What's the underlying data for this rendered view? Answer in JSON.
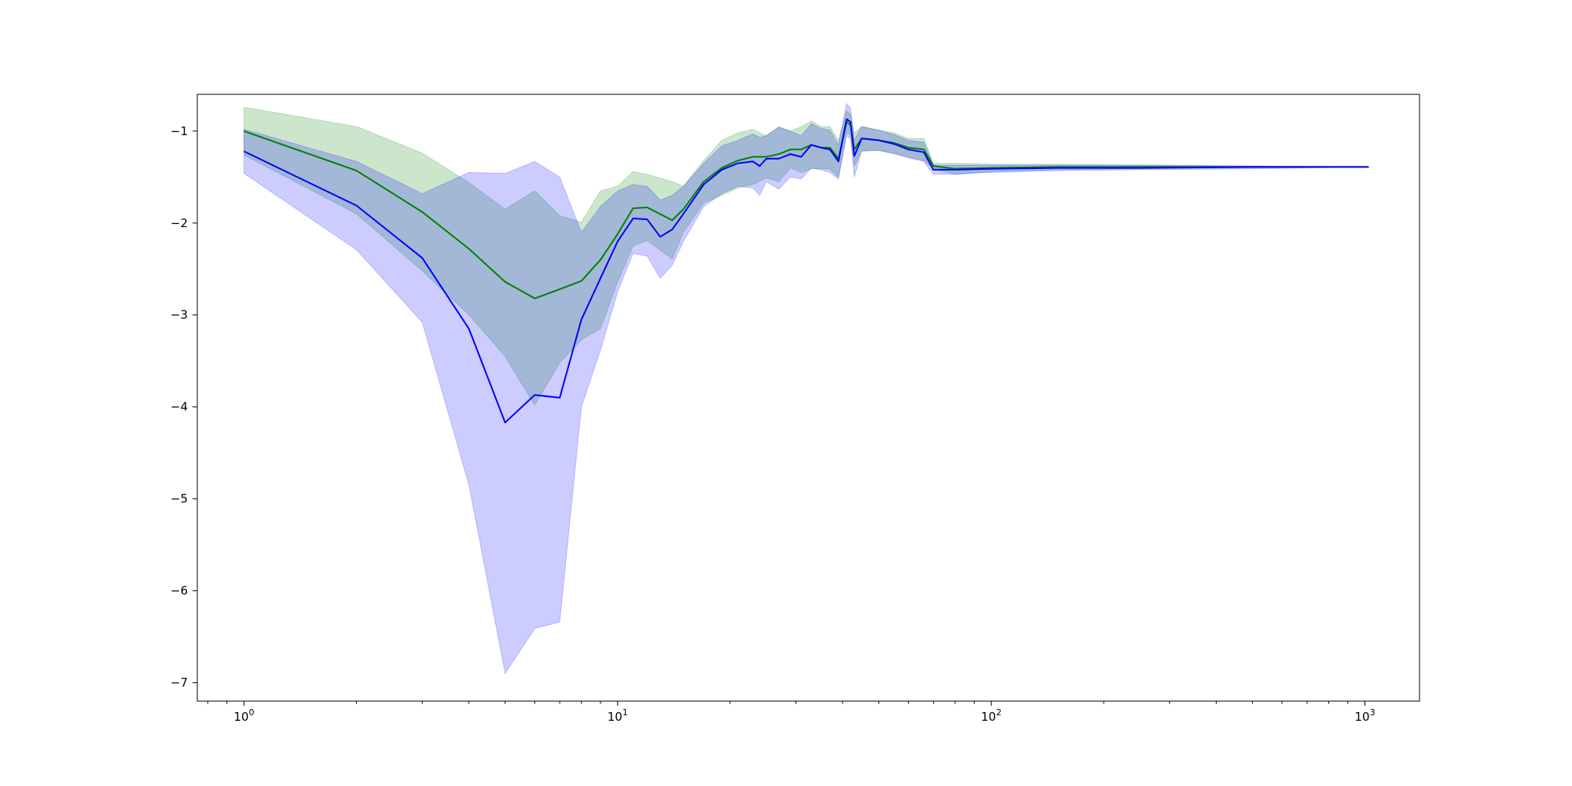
{
  "chart_data": {
    "type": "line",
    "title": "",
    "xlabel": "",
    "ylabel": "",
    "xscale": "log",
    "xlim": [
      0.75,
      1400
    ],
    "ylim": [
      -7.2,
      -0.6
    ],
    "grid": false,
    "x_ticks": [
      {
        "value": 1,
        "base": "10",
        "exp": "0"
      },
      {
        "value": 10,
        "base": "10",
        "exp": "1"
      },
      {
        "value": 100,
        "base": "10",
        "exp": "2"
      },
      {
        "value": 1000,
        "base": "10",
        "exp": "3"
      }
    ],
    "y_ticks": [
      {
        "value": -1,
        "label": "−1"
      },
      {
        "value": -2,
        "label": "−2"
      },
      {
        "value": -3,
        "label": "−3"
      },
      {
        "value": -4,
        "label": "−4"
      },
      {
        "value": -5,
        "label": "−5"
      },
      {
        "value": -6,
        "label": "−6"
      },
      {
        "value": -7,
        "label": "−7"
      }
    ],
    "series": [
      {
        "color": "#008000",
        "band_color": "#008000",
        "band_opacity": 0.2,
        "points": [
          [
            1,
            -1.0
          ],
          [
            2,
            -1.43
          ],
          [
            3,
            -1.88
          ],
          [
            4,
            -2.28
          ],
          [
            5,
            -2.64
          ],
          [
            6,
            -2.82
          ],
          [
            7,
            -2.72
          ],
          [
            8,
            -2.63
          ],
          [
            9,
            -2.4
          ],
          [
            10,
            -2.12
          ],
          [
            11,
            -1.84
          ],
          [
            12,
            -1.83
          ],
          [
            14,
            -1.97
          ],
          [
            15,
            -1.85
          ],
          [
            17,
            -1.55
          ],
          [
            19,
            -1.4
          ],
          [
            21,
            -1.32
          ],
          [
            23,
            -1.28
          ],
          [
            25,
            -1.28
          ],
          [
            27,
            -1.25
          ],
          [
            29,
            -1.2
          ],
          [
            31,
            -1.2
          ],
          [
            33,
            -1.15
          ],
          [
            35,
            -1.18
          ],
          [
            37,
            -1.18
          ],
          [
            39,
            -1.3
          ],
          [
            41,
            -0.9
          ],
          [
            42,
            -0.93
          ],
          [
            43,
            -1.2
          ],
          [
            45,
            -1.08
          ],
          [
            50,
            -1.1
          ],
          [
            55,
            -1.13
          ],
          [
            60,
            -1.18
          ],
          [
            66,
            -1.2
          ],
          [
            70,
            -1.38
          ],
          [
            80,
            -1.41
          ],
          [
            100,
            -1.4
          ],
          [
            150,
            -1.39
          ],
          [
            250,
            -1.39
          ],
          [
            500,
            -1.39
          ],
          [
            1024,
            -1.39
          ]
        ],
        "upper": [
          [
            1,
            -0.74
          ],
          [
            2,
            -0.95
          ],
          [
            3,
            -1.24
          ],
          [
            4,
            -1.56
          ],
          [
            5,
            -1.85
          ],
          [
            6,
            -1.65
          ],
          [
            7,
            -1.92
          ],
          [
            8,
            -1.99
          ],
          [
            9,
            -1.65
          ],
          [
            10,
            -1.6
          ],
          [
            11,
            -1.44
          ],
          [
            12,
            -1.47
          ],
          [
            14,
            -1.55
          ],
          [
            15,
            -1.6
          ],
          [
            17,
            -1.32
          ],
          [
            19,
            -1.1
          ],
          [
            21,
            -1.02
          ],
          [
            23,
            -0.98
          ],
          [
            25,
            -1.05
          ],
          [
            27,
            -0.95
          ],
          [
            29,
            -1.0
          ],
          [
            31,
            -0.95
          ],
          [
            33,
            -0.89
          ],
          [
            35,
            -0.95
          ],
          [
            37,
            -0.95
          ],
          [
            39,
            -1.1
          ],
          [
            41,
            -0.78
          ],
          [
            42,
            -0.82
          ],
          [
            43,
            -1.02
          ],
          [
            45,
            -0.95
          ],
          [
            50,
            -0.99
          ],
          [
            55,
            -1.02
          ],
          [
            60,
            -1.08
          ],
          [
            66,
            -1.08
          ],
          [
            70,
            -1.35
          ],
          [
            80,
            -1.35
          ],
          [
            100,
            -1.36
          ],
          [
            150,
            -1.36
          ],
          [
            250,
            -1.37
          ],
          [
            500,
            -1.38
          ],
          [
            1024,
            -1.39
          ]
        ],
        "lower": [
          [
            1,
            -1.26
          ],
          [
            2,
            -1.9
          ],
          [
            3,
            -2.52
          ],
          [
            4,
            -3.0
          ],
          [
            5,
            -3.45
          ],
          [
            6,
            -3.98
          ],
          [
            7,
            -3.52
          ],
          [
            8,
            -3.27
          ],
          [
            9,
            -3.15
          ],
          [
            10,
            -2.64
          ],
          [
            11,
            -2.25
          ],
          [
            12,
            -2.19
          ],
          [
            14,
            -2.39
          ],
          [
            15,
            -2.1
          ],
          [
            17,
            -1.78
          ],
          [
            19,
            -1.7
          ],
          [
            21,
            -1.62
          ],
          [
            23,
            -1.58
          ],
          [
            25,
            -1.51
          ],
          [
            27,
            -1.55
          ],
          [
            29,
            -1.4
          ],
          [
            31,
            -1.45
          ],
          [
            33,
            -1.41
          ],
          [
            35,
            -1.41
          ],
          [
            37,
            -1.41
          ],
          [
            39,
            -1.5
          ],
          [
            41,
            -1.02
          ],
          [
            42,
            -1.04
          ],
          [
            43,
            -1.38
          ],
          [
            45,
            -1.21
          ],
          [
            50,
            -1.21
          ],
          [
            55,
            -1.24
          ],
          [
            60,
            -1.28
          ],
          [
            66,
            -1.32
          ],
          [
            70,
            -1.41
          ],
          [
            80,
            -1.47
          ],
          [
            100,
            -1.44
          ],
          [
            150,
            -1.42
          ],
          [
            250,
            -1.41
          ],
          [
            500,
            -1.4
          ],
          [
            1024,
            -1.39
          ]
        ]
      },
      {
        "color": "#0000ff",
        "band_color": "#0000ff",
        "band_opacity": 0.2,
        "points": [
          [
            1,
            -1.22
          ],
          [
            2,
            -1.81
          ],
          [
            3,
            -2.38
          ],
          [
            4,
            -3.15
          ],
          [
            5,
            -4.17
          ],
          [
            6,
            -3.87
          ],
          [
            7,
            -3.9
          ],
          [
            8,
            -3.05
          ],
          [
            9,
            -2.6
          ],
          [
            10,
            -2.2
          ],
          [
            11,
            -1.95
          ],
          [
            12,
            -1.96
          ],
          [
            13,
            -2.15
          ],
          [
            14,
            -2.07
          ],
          [
            15,
            -1.9
          ],
          [
            17,
            -1.58
          ],
          [
            19,
            -1.42
          ],
          [
            21,
            -1.35
          ],
          [
            23,
            -1.33
          ],
          [
            24,
            -1.38
          ],
          [
            25,
            -1.3
          ],
          [
            27,
            -1.3
          ],
          [
            29,
            -1.25
          ],
          [
            31,
            -1.28
          ],
          [
            33,
            -1.15
          ],
          [
            35,
            -1.18
          ],
          [
            37,
            -1.2
          ],
          [
            39,
            -1.33
          ],
          [
            41,
            -0.87
          ],
          [
            42,
            -0.9
          ],
          [
            43,
            -1.27
          ],
          [
            45,
            -1.08
          ],
          [
            50,
            -1.1
          ],
          [
            55,
            -1.14
          ],
          [
            60,
            -1.2
          ],
          [
            66,
            -1.23
          ],
          [
            70,
            -1.42
          ],
          [
            80,
            -1.42
          ],
          [
            100,
            -1.41
          ],
          [
            150,
            -1.4
          ],
          [
            250,
            -1.4
          ],
          [
            500,
            -1.39
          ],
          [
            1024,
            -1.39
          ]
        ],
        "upper": [
          [
            1,
            -0.98
          ],
          [
            2,
            -1.33
          ],
          [
            3,
            -1.68
          ],
          [
            4,
            -1.45
          ],
          [
            5,
            -1.46
          ],
          [
            6,
            -1.33
          ],
          [
            7,
            -1.5
          ],
          [
            8,
            -2.1
          ],
          [
            9,
            -1.82
          ],
          [
            10,
            -1.65
          ],
          [
            11,
            -1.58
          ],
          [
            12,
            -1.6
          ],
          [
            13,
            -1.75
          ],
          [
            14,
            -1.7
          ],
          [
            15,
            -1.6
          ],
          [
            17,
            -1.35
          ],
          [
            19,
            -1.16
          ],
          [
            21,
            -1.1
          ],
          [
            23,
            -1.03
          ],
          [
            24,
            -1.07
          ],
          [
            25,
            -1.05
          ],
          [
            27,
            -0.96
          ],
          [
            29,
            -1.0
          ],
          [
            31,
            -1.05
          ],
          [
            33,
            -0.92
          ],
          [
            35,
            -0.97
          ],
          [
            37,
            -0.99
          ],
          [
            39,
            -1.15
          ],
          [
            41,
            -0.7
          ],
          [
            42,
            -0.75
          ],
          [
            43,
            -1.1
          ],
          [
            45,
            -0.95
          ],
          [
            50,
            -0.99
          ],
          [
            55,
            -1.04
          ],
          [
            60,
            -1.1
          ],
          [
            66,
            -1.12
          ],
          [
            70,
            -1.37
          ],
          [
            80,
            -1.37
          ],
          [
            100,
            -1.37
          ],
          [
            150,
            -1.37
          ],
          [
            250,
            -1.37
          ],
          [
            500,
            -1.38
          ],
          [
            1024,
            -1.39
          ]
        ],
        "lower": [
          [
            1,
            -1.46
          ],
          [
            2,
            -2.29
          ],
          [
            3,
            -3.08
          ],
          [
            4,
            -4.85
          ],
          [
            5,
            -6.9
          ],
          [
            6,
            -6.41
          ],
          [
            7,
            -6.34
          ],
          [
            8,
            -4.0
          ],
          [
            9,
            -3.38
          ],
          [
            10,
            -2.75
          ],
          [
            11,
            -2.33
          ],
          [
            12,
            -2.36
          ],
          [
            13,
            -2.6
          ],
          [
            14,
            -2.46
          ],
          [
            15,
            -2.2
          ],
          [
            17,
            -1.82
          ],
          [
            19,
            -1.68
          ],
          [
            21,
            -1.6
          ],
          [
            23,
            -1.62
          ],
          [
            24,
            -1.7
          ],
          [
            25,
            -1.55
          ],
          [
            27,
            -1.63
          ],
          [
            29,
            -1.5
          ],
          [
            31,
            -1.52
          ],
          [
            33,
            -1.4
          ],
          [
            35,
            -1.42
          ],
          [
            37,
            -1.45
          ],
          [
            39,
            -1.52
          ],
          [
            41,
            -1.05
          ],
          [
            42,
            -1.08
          ],
          [
            43,
            -1.5
          ],
          [
            45,
            -1.22
          ],
          [
            50,
            -1.21
          ],
          [
            55,
            -1.25
          ],
          [
            60,
            -1.29
          ],
          [
            66,
            -1.33
          ],
          [
            70,
            -1.47
          ],
          [
            80,
            -1.47
          ],
          [
            100,
            -1.45
          ],
          [
            150,
            -1.43
          ],
          [
            250,
            -1.42
          ],
          [
            500,
            -1.41
          ],
          [
            1024,
            -1.39
          ]
        ]
      }
    ]
  }
}
